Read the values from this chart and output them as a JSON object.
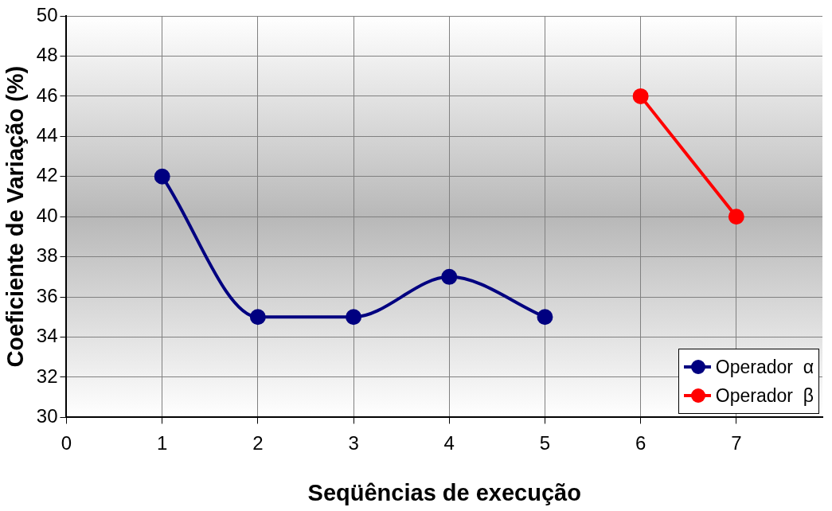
{
  "chart_data": {
    "type": "line",
    "xlabel": "Seqüências de execução",
    "ylabel": "Coeficiente de Variação (%)",
    "xlim": [
      0,
      7.9
    ],
    "xticks": [
      0,
      1,
      2,
      3,
      4,
      5,
      6,
      7
    ],
    "ylim": [
      30,
      50
    ],
    "yticks": [
      30,
      32,
      34,
      36,
      38,
      40,
      42,
      44,
      46,
      48,
      50
    ],
    "grid": true,
    "legend": "bottom right",
    "marker": "circle",
    "line_style": "solid",
    "series": [
      {
        "name": "Operador  α",
        "color": "#000080",
        "x": [
          1,
          2,
          3,
          4,
          5
        ],
        "values": [
          42,
          35,
          35,
          37,
          35
        ]
      },
      {
        "name": "Operador  β",
        "color": "#ff0000",
        "x": [
          6,
          7
        ],
        "values": [
          46,
          40
        ]
      }
    ]
  }
}
